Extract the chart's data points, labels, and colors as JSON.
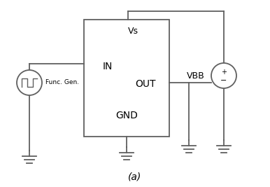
{
  "fig_width": 3.86,
  "fig_height": 2.67,
  "dpi": 100,
  "bg_color": "#ffffff",
  "line_color": "#606060",
  "line_width": 1.3,
  "box_label_in": "IN",
  "box_label_out": "OUT",
  "box_label_gnd": "GND",
  "box_label_vs": "Vs",
  "label_vbb": "VBB",
  "label_func": "Func. Gen.",
  "caption": "(a)"
}
